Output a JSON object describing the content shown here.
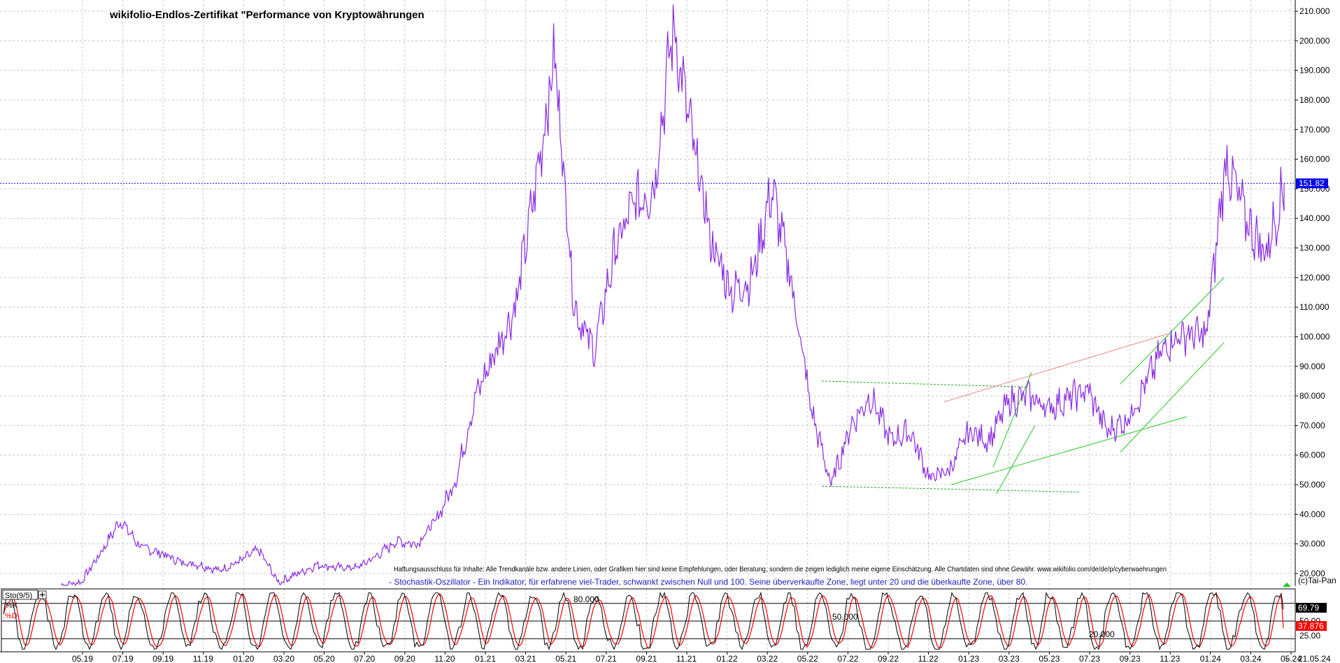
{
  "title": "wikifolio-Endlos-Zertifikat \"Performance von Kryptowährungen",
  "disclaimer": "Haftungsausschluss für Inhalte: Alle Trendkanäle bzw. andere Linien, oder Grafiken hier sind keine Empfehlungen, oder Beratung, sondern die zeigen lediglich meine eigene Einschätzung. Alle Chartdaten sind ohne Gewähr.  www.wikifolio.com/de/de/p/cyberwaehrungen",
  "stochastic_description": "- Stochastik-Oszillator - Ein Indikator, für erfahrene viel-Trader, schwankt zwischen Null und 100. Seine überverkaufte Zone, liegt unter 20 und die überkaufte Zone, über 80.",
  "copyright": "(c)Tai-Pan",
  "last_price_label": "151.82",
  "colors": {
    "price_line": "#8a2be2",
    "last_price_line": "#0000ee",
    "last_price_badge": "#0000ee",
    "channel_green": "#22c822",
    "channel_dashed": "#22aa22",
    "trend_pink": "#f08080",
    "stoch_k": "#000000",
    "stoch_d": "#ff0000",
    "grid": "#c8c8c8",
    "k_badge": "#000000",
    "d_badge": "#ff0000"
  },
  "chart_data": [
    {
      "type": "line",
      "title": "wikifolio-Endlos-Zertifikat \"Performance von Kryptowährungen",
      "x_tick_labels": [
        "05.19",
        "07.19",
        "09.19",
        "11.19",
        "01.20",
        "03.20",
        "05.20",
        "07.20",
        "09.20",
        "11.20",
        "01.21",
        "03.21",
        "05.21",
        "07.21",
        "09.21",
        "11.21",
        "01.22",
        "03.22",
        "05.22",
        "07.22",
        "09.22",
        "11.22",
        "01.23",
        "03.23",
        "05.23",
        "07.23",
        "09.23",
        "11.23",
        "01.24",
        "03.24",
        "05.24"
      ],
      "x_axis_end_label": "21.05.24",
      "y_tick_labels": [
        "20.000",
        "30.000",
        "40.000",
        "50.000",
        "60.000",
        "70.000",
        "80.000",
        "90.000",
        "100.000",
        "110.000",
        "120.000",
        "130.000",
        "140.000",
        "150.000",
        "160.000",
        "170.000",
        "180.000",
        "190.000",
        "200.000",
        "210.000"
      ],
      "ylim": [
        15,
        214
      ],
      "grid": true,
      "series": [
        {
          "values_approx_by_month": [
            [
              "04.19",
              16
            ],
            [
              "05.19",
              17
            ],
            [
              "06.19",
              27
            ],
            [
              "07.19",
              38
            ],
            [
              "08.19",
              29
            ],
            [
              "09.19",
              27
            ],
            [
              "10.19",
              24
            ],
            [
              "11.19",
              23
            ],
            [
              "12.19",
              21
            ],
            [
              "01.20",
              24
            ],
            [
              "02.20",
              28
            ],
            [
              "03.20",
              17
            ],
            [
              "04.20",
              20
            ],
            [
              "05.20",
              23
            ],
            [
              "06.20",
              22
            ],
            [
              "07.20",
              22
            ],
            [
              "08.20",
              26
            ],
            [
              "09.20",
              31
            ],
            [
              "10.20",
              30
            ],
            [
              "11.20",
              38
            ],
            [
              "12.20",
              52
            ],
            [
              "01.21",
              80
            ],
            [
              "02.21",
              95
            ],
            [
              "03.21",
              110
            ],
            [
              "04.21",
              150
            ],
            [
              "05.21",
              195
            ],
            [
              "06.21",
              110
            ],
            [
              "07.21",
              95
            ],
            [
              "08.21",
              128
            ],
            [
              "09.21",
              145
            ],
            [
              "10.21",
              150
            ],
            [
              "11.21",
              205
            ],
            [
              "12.21",
              165
            ],
            [
              "01.22",
              130
            ],
            [
              "02.22",
              115
            ],
            [
              "03.22",
              120
            ],
            [
              "04.22",
              150
            ],
            [
              "05.22",
              118
            ],
            [
              "06.22",
              75
            ],
            [
              "07.22",
              50
            ],
            [
              "08.22",
              70
            ],
            [
              "09.22",
              80
            ],
            [
              "10.22",
              65
            ],
            [
              "11.22",
              68
            ],
            [
              "12.22",
              52
            ],
            [
              "01.23",
              55
            ],
            [
              "02.23",
              68
            ],
            [
              "03.23",
              65
            ],
            [
              "04.23",
              78
            ],
            [
              "05.23",
              80
            ],
            [
              "06.23",
              76
            ],
            [
              "07.23",
              79
            ],
            [
              "08.23",
              82
            ],
            [
              "09.23",
              68
            ],
            [
              "10.23",
              72
            ],
            [
              "11.23",
              85
            ],
            [
              "12.23",
              98
            ],
            [
              "01.24",
              101
            ],
            [
              "02.24",
              100
            ],
            [
              "03.24",
              160
            ],
            [
              "04.24",
              140
            ],
            [
              "05.24",
              128
            ],
            [
              "21.05.24",
              151.82
            ]
          ]
        }
      ],
      "last_value": 151.82,
      "annotations": [
        "151.82"
      ]
    },
    {
      "type": "line",
      "title": "Sto(9/5)",
      "legend": [
        "%K",
        "%D"
      ],
      "levels_printed": [
        "80.000",
        "50.000",
        "20.000"
      ],
      "y_tick_labels": [
        "75.00",
        "50.00",
        "25.00"
      ],
      "ylim": [
        0,
        100
      ],
      "last_values": {
        "K": 69.79,
        "D": 37.876
      },
      "last_value_labels": {
        "K": "69.79",
        "D": "37.876"
      }
    }
  ]
}
